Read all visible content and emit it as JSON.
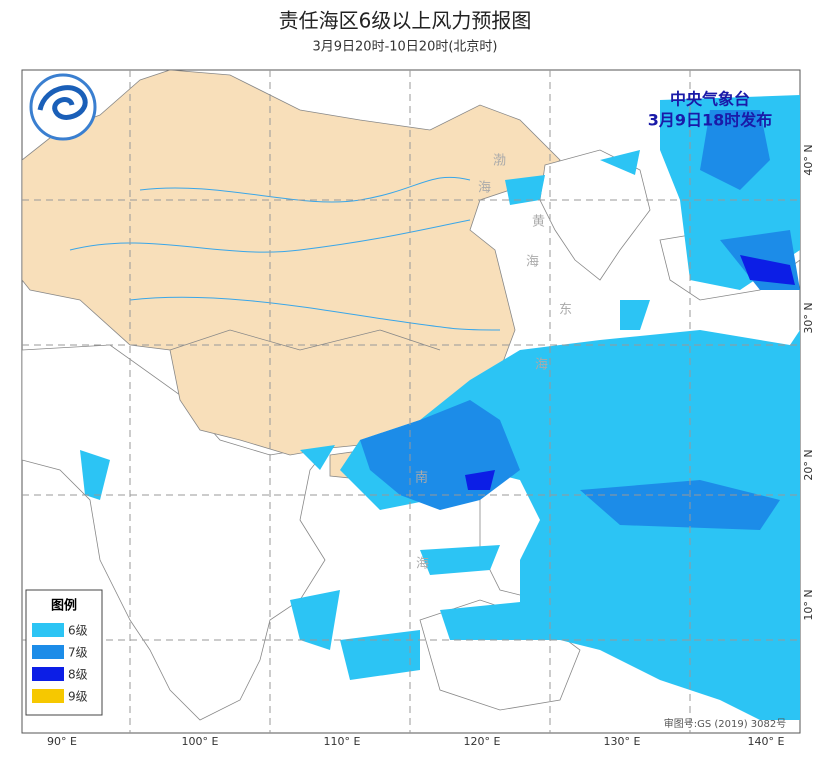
{
  "header": {
    "title": "责任海区6级以上风力预报图",
    "subtitle": "3月9日20时-10日20时(北京时)"
  },
  "agency": {
    "name": "中央气象台",
    "issued": "3月9日18时发布"
  },
  "longitude_labels": [
    "90° E",
    "100° E",
    "110° E",
    "120° E",
    "130° E",
    "140° E"
  ],
  "latitude_labels": [
    "40° N",
    "30° N",
    "20° N",
    "10° N"
  ],
  "sea_labels": [
    "渤",
    "海",
    "黄",
    "海",
    "东",
    "海",
    "南",
    "海"
  ],
  "legend": {
    "title": "图例",
    "items": [
      {
        "label": "6级",
        "color": "#2cc4f4"
      },
      {
        "label": "7级",
        "color": "#1c8ce8"
      },
      {
        "label": "8级",
        "color": "#0c1ee6"
      },
      {
        "label": "9级",
        "color": "#f6c800"
      }
    ]
  },
  "map_review_number": "审图号:GS (2019) 3082号"
}
